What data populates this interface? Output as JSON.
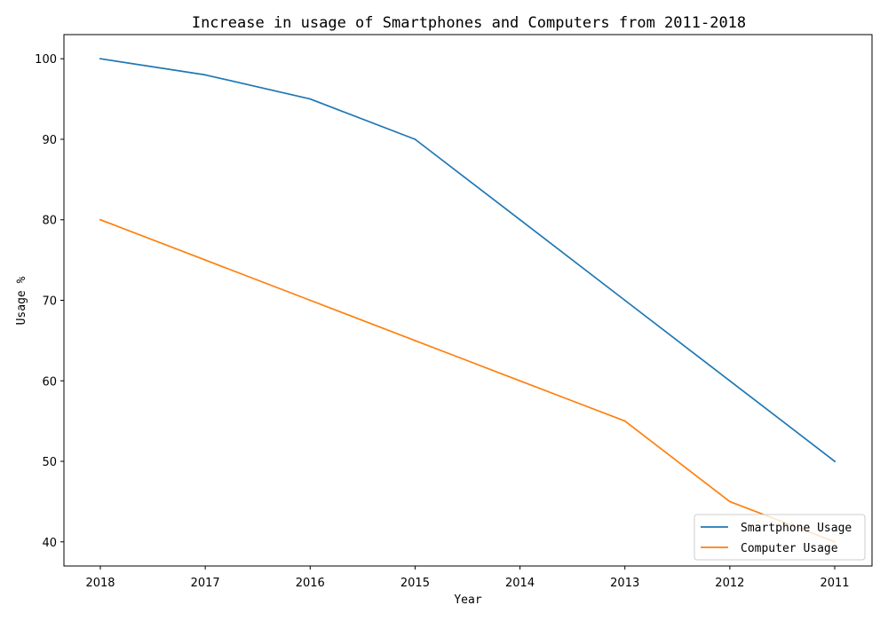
{
  "chart_data": {
    "type": "line",
    "title": "Increase in usage of Smartphones and Computers from 2011-2018",
    "xlabel": "Year",
    "ylabel": "Usage %",
    "categories": [
      "2018",
      "2017",
      "2016",
      "2015",
      "2014",
      "2013",
      "2012",
      "2011"
    ],
    "yticks": [
      40,
      50,
      60,
      70,
      80,
      90,
      100
    ],
    "ylim": [
      37,
      103
    ],
    "grid": false,
    "legend_position": "lower-right",
    "series": [
      {
        "name": "Smartphone Usage",
        "color": "#1f77b4",
        "values": [
          100,
          98,
          95,
          90,
          80,
          70,
          60,
          50
        ]
      },
      {
        "name": "Computer Usage",
        "color": "#ff7f0e",
        "values": [
          80,
          75,
          70,
          65,
          60,
          55,
          45,
          40
        ]
      }
    ]
  }
}
